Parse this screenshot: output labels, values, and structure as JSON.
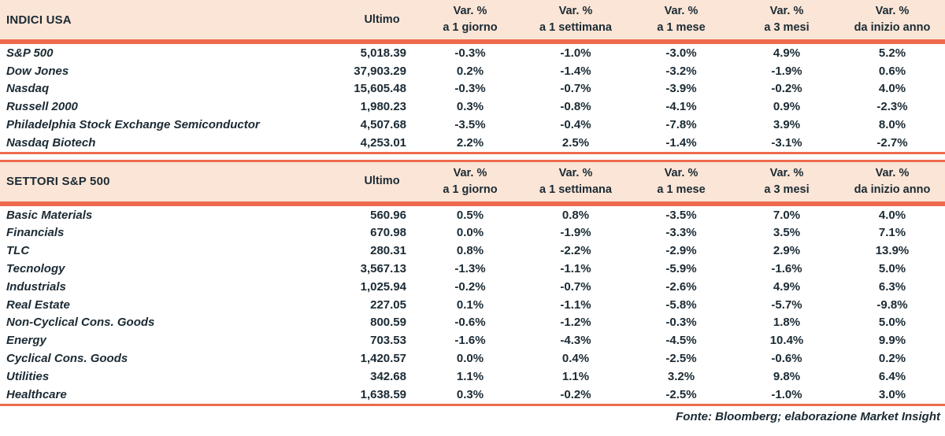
{
  "chart_data": [
    {
      "type": "table",
      "title": "INDICI USA",
      "value_column": "Ultimo",
      "top_rule": false,
      "var_columns": [
        {
          "line1": "Var. %",
          "line2": "a 1 giorno"
        },
        {
          "line1": "Var. %",
          "line2": "a 1 settimana"
        },
        {
          "line1": "Var. %",
          "line2": "a 1 mese"
        },
        {
          "line1": "Var. %",
          "line2": "a 3 mesi"
        },
        {
          "line1": "Var. %",
          "line2": "da inizio anno"
        }
      ],
      "rows": [
        {
          "label": "S&P 500",
          "ultimo": "5,018.39",
          "var": [
            "-0.3%",
            "-1.0%",
            "-3.0%",
            "4.9%",
            "5.2%"
          ]
        },
        {
          "label": "Dow Jones",
          "ultimo": "37,903.29",
          "var": [
            "0.2%",
            "-1.4%",
            "-3.2%",
            "-1.9%",
            "0.6%"
          ]
        },
        {
          "label": "Nasdaq",
          "ultimo": "15,605.48",
          "var": [
            "-0.3%",
            "-0.7%",
            "-3.9%",
            "-0.2%",
            "4.0%"
          ]
        },
        {
          "label": "Russell 2000",
          "ultimo": "1,980.23",
          "var": [
            "0.3%",
            "-0.8%",
            "-4.1%",
            "0.9%",
            "-2.3%"
          ]
        },
        {
          "label": "Philadelphia Stock Exchange Semiconductor",
          "ultimo": "4,507.68",
          "var": [
            "-3.5%",
            "-0.4%",
            "-7.8%",
            "3.9%",
            "8.0%"
          ]
        },
        {
          "label": "Nasdaq Biotech",
          "ultimo": "4,253.01",
          "var": [
            "2.2%",
            "2.5%",
            "-1.4%",
            "-3.1%",
            "-2.7%"
          ]
        }
      ]
    },
    {
      "type": "table",
      "title": "SETTORI S&P 500",
      "value_column": "Ultimo",
      "top_rule": true,
      "var_columns": [
        {
          "line1": "Var. %",
          "line2": "a 1 giorno"
        },
        {
          "line1": "Var. %",
          "line2": "a 1 settimana"
        },
        {
          "line1": "Var. %",
          "line2": "a 1 mese"
        },
        {
          "line1": "Var. %",
          "line2": "a 3 mesi"
        },
        {
          "line1": "Var. %",
          "line2": "da inizio anno"
        }
      ],
      "rows": [
        {
          "label": "Basic Materials",
          "ultimo": "560.96",
          "var": [
            "0.5%",
            "0.8%",
            "-3.5%",
            "7.0%",
            "4.0%"
          ]
        },
        {
          "label": "Financials",
          "ultimo": "670.98",
          "var": [
            "0.0%",
            "-1.9%",
            "-3.3%",
            "3.5%",
            "7.1%"
          ]
        },
        {
          "label": "TLC",
          "ultimo": "280.31",
          "var": [
            "0.8%",
            "-2.2%",
            "-2.9%",
            "2.9%",
            "13.9%"
          ]
        },
        {
          "label": "Tecnology",
          "ultimo": "3,567.13",
          "var": [
            "-1.3%",
            "-1.1%",
            "-5.9%",
            "-1.6%",
            "5.0%"
          ]
        },
        {
          "label": "Industrials",
          "ultimo": "1,025.94",
          "var": [
            "-0.2%",
            "-0.7%",
            "-2.6%",
            "4.9%",
            "6.3%"
          ]
        },
        {
          "label": "Real Estate",
          "ultimo": "227.05",
          "var": [
            "0.1%",
            "-1.1%",
            "-5.8%",
            "-5.7%",
            "-9.8%"
          ]
        },
        {
          "label": "Non-Cyclical Cons. Goods",
          "ultimo": "800.59",
          "var": [
            "-0.6%",
            "-1.2%",
            "-0.3%",
            "1.8%",
            "5.0%"
          ]
        },
        {
          "label": "Energy",
          "ultimo": "703.53",
          "var": [
            "-1.6%",
            "-4.3%",
            "-4.5%",
            "10.4%",
            "9.9%"
          ]
        },
        {
          "label": "Cyclical Cons. Goods",
          "ultimo": "1,420.57",
          "var": [
            "0.0%",
            "0.4%",
            "-2.5%",
            "-0.6%",
            "0.2%"
          ]
        },
        {
          "label": "Utilities",
          "ultimo": "342.68",
          "var": [
            "1.1%",
            "1.1%",
            "3.2%",
            "9.8%",
            "6.4%"
          ]
        },
        {
          "label": "Healthcare",
          "ultimo": "1,638.59",
          "var": [
            "0.3%",
            "-0.2%",
            "-2.5%",
            "-1.0%",
            "3.0%"
          ]
        }
      ]
    }
  ],
  "footer": {
    "source_label": "Fonte: Bloomberg; elaborazione Market Insight"
  },
  "colors": {
    "header_bg": "#fbe5d6",
    "rule": "#ee6a4d",
    "text": "#1b2a34"
  }
}
